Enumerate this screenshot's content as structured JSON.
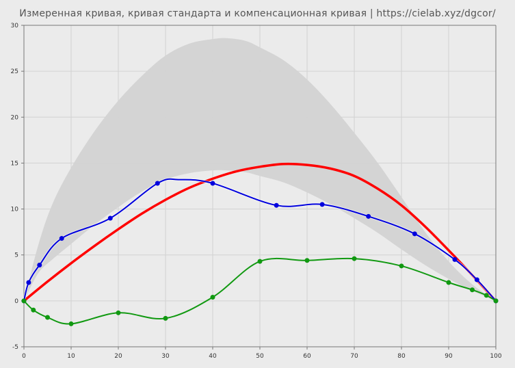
{
  "chart_data": {
    "type": "line",
    "title": "Измеренная кривая, кривая стандарта и компенсационная кривая | https://cielab.xyz/dgcor/",
    "xlim": [
      0,
      100
    ],
    "ylim": [
      -5,
      30
    ],
    "x_ticks": [
      "0",
      "10",
      "20",
      "30",
      "40",
      "50",
      "60",
      "70",
      "80",
      "90",
      "100"
    ],
    "y_ticks": [
      "-5",
      "0",
      "5",
      "10",
      "15",
      "20",
      "25",
      "30"
    ],
    "grid": true,
    "tolerance_band": {
      "x": [
        0,
        3,
        6,
        10,
        15,
        20,
        25,
        30,
        35,
        40,
        43,
        47,
        50,
        55,
        60,
        65,
        70,
        75,
        80,
        85,
        90,
        95,
        100
      ],
      "upper": [
        0,
        6,
        10.5,
        14.5,
        18.5,
        21.8,
        24.5,
        26.7,
        28,
        28.5,
        28.6,
        28.3,
        27.6,
        26.2,
        24.1,
        21.4,
        18.3,
        15,
        11.3,
        7.5,
        4.3,
        1.8,
        0
      ],
      "lower": [
        0,
        3,
        4.5,
        6.2,
        8.3,
        10.2,
        11.9,
        13.2,
        13.9,
        14.2,
        14.2,
        14,
        13.6,
        12.9,
        11.8,
        10.5,
        9,
        7.4,
        5.6,
        3.9,
        2.4,
        1.1,
        0
      ],
      "color": "#d3d3d3"
    },
    "series": [
      {
        "color": "#ff0000",
        "x": [
          0,
          5,
          10,
          15,
          20,
          25,
          30,
          35,
          40,
          45,
          50,
          55,
          60,
          65,
          70,
          75,
          80,
          85,
          90,
          95,
          100
        ],
        "y": [
          0,
          2.1,
          4.1,
          6,
          7.8,
          9.5,
          11,
          12.3,
          13.3,
          14.1,
          14.6,
          14.9,
          14.8,
          14.4,
          13.6,
          12.2,
          10.4,
          8.1,
          5.5,
          2.8,
          0
        ]
      },
      {
        "color": "#0000dd",
        "x": [
          0,
          1,
          3.3,
          8,
          18.3,
          28.3,
          33,
          40,
          53.5,
          63.2,
          73,
          82.8,
          91.3,
          96,
          100
        ],
        "y": [
          0,
          2,
          3.9,
          6.8,
          9,
          12.8,
          13.2,
          12.8,
          10.4,
          10.5,
          9.2,
          7.3,
          4.5,
          2.3,
          0
        ]
      },
      {
        "color": "#119911",
        "x": [
          0,
          2,
          5,
          10,
          20,
          30,
          40,
          50,
          60,
          70,
          80,
          90,
          95,
          98,
          100
        ],
        "y": [
          0,
          -1,
          -1.8,
          -2.5,
          -1.3,
          -1.9,
          0.4,
          4.3,
          4.4,
          4.6,
          3.8,
          2,
          1.2,
          0.6,
          0
        ]
      }
    ],
    "markers": [
      {
        "series": 1,
        "x": [
          0,
          1,
          3.3,
          8,
          18.3,
          28.3,
          40,
          53.5,
          63.2,
          73,
          82.8,
          91.3,
          96,
          100
        ],
        "y": [
          0,
          2,
          3.9,
          6.8,
          9,
          12.8,
          12.8,
          10.4,
          10.5,
          9.2,
          7.3,
          4.5,
          2.3,
          0
        ]
      },
      {
        "series": 2,
        "x": [
          0,
          2,
          5,
          10,
          20,
          30,
          40,
          50,
          60,
          70,
          80,
          90,
          95,
          98,
          100
        ],
        "y": [
          0,
          -1,
          -1.8,
          -2.5,
          -1.3,
          -1.9,
          0.4,
          4.3,
          4.4,
          4.6,
          3.8,
          2,
          1.2,
          0.6,
          0
        ]
      }
    ]
  }
}
